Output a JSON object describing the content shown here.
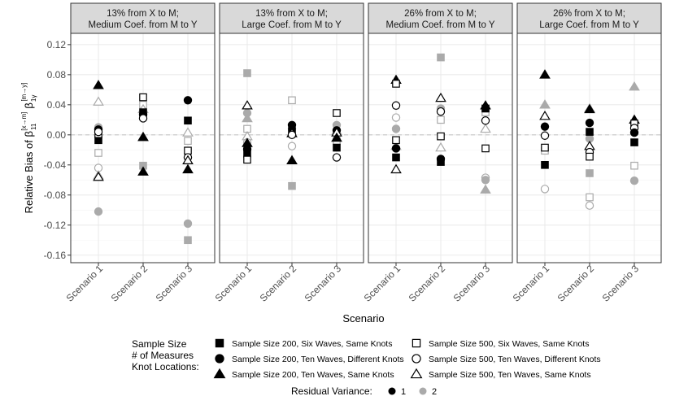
{
  "chart_data": {
    "type": "scatter",
    "ylabel_main": "Relative Bias of β",
    "ylabel_sub": "11",
    "ylabel_sup": "[x→m]",
    "ylabel_main2": "β",
    "ylabel_sub2": "1γ",
    "ylabel_sup2": "[m→y]",
    "xlabel": "Scenario",
    "ylim": [
      -0.17,
      0.135
    ],
    "yticks": [
      0.12,
      0.08,
      0.04,
      0.0,
      -0.04,
      -0.08,
      -0.12,
      -0.16
    ],
    "ytick_labels": [
      "0.12",
      "0.08",
      "0.04",
      "0.00",
      "-0.04",
      "-0.08",
      "-0.12",
      "-0.16"
    ],
    "categories": [
      "Scenario 1",
      "Scenario 2",
      "Scenario 3"
    ],
    "panels": [
      {
        "title_line1": "13% from X to M;",
        "title_line2": "Medium Coef. from M to Y",
        "points": [
          {
            "c": 0,
            "v": 0.066,
            "sh": "triangle",
            "f": true,
            "rv": 1
          },
          {
            "c": 0,
            "v": 0.007,
            "sh": "circle",
            "f": true,
            "rv": 1
          },
          {
            "c": 0,
            "v": -0.007,
            "sh": "square",
            "f": true,
            "rv": 1
          },
          {
            "c": 0,
            "v": 0.001,
            "sh": "square",
            "f": false,
            "rv": 1
          },
          {
            "c": 0,
            "v": 0.004,
            "sh": "circle",
            "f": false,
            "rv": 1
          },
          {
            "c": 0,
            "v": -0.056,
            "sh": "triangle",
            "f": false,
            "rv": 1
          },
          {
            "c": 0,
            "v": 0.044,
            "sh": "triangle",
            "f": false,
            "rv": 2
          },
          {
            "c": 0,
            "v": 0.01,
            "sh": "circle",
            "f": true,
            "rv": 2
          },
          {
            "c": 0,
            "v": -0.024,
            "sh": "square",
            "f": false,
            "rv": 2
          },
          {
            "c": 0,
            "v": -0.044,
            "sh": "circle",
            "f": false,
            "rv": 2
          },
          {
            "c": 0,
            "v": -0.054,
            "sh": "triangle",
            "f": true,
            "rv": 2
          },
          {
            "c": 0,
            "v": -0.102,
            "sh": "circle",
            "f": true,
            "rv": 2
          },
          {
            "c": 1,
            "v": 0.05,
            "sh": "square",
            "f": false,
            "rv": 1
          },
          {
            "c": 1,
            "v": 0.03,
            "sh": "square",
            "f": true,
            "rv": 1
          },
          {
            "c": 1,
            "v": 0.027,
            "sh": "circle",
            "f": true,
            "rv": 1
          },
          {
            "c": 1,
            "v": 0.022,
            "sh": "circle",
            "f": false,
            "rv": 1
          },
          {
            "c": 1,
            "v": -0.003,
            "sh": "triangle",
            "f": true,
            "rv": 1
          },
          {
            "c": 1,
            "v": -0.049,
            "sh": "triangle",
            "f": true,
            "rv": 1
          },
          {
            "c": 1,
            "v": 0.04,
            "sh": "square",
            "f": false,
            "rv": 2
          },
          {
            "c": 1,
            "v": 0.034,
            "sh": "triangle",
            "f": false,
            "rv": 2
          },
          {
            "c": 1,
            "v": -0.003,
            "sh": "triangle",
            "f": false,
            "rv": 2
          },
          {
            "c": 1,
            "v": -0.041,
            "sh": "square",
            "f": true,
            "rv": 2
          },
          {
            "c": 2,
            "v": 0.046,
            "sh": "circle",
            "f": true,
            "rv": 1
          },
          {
            "c": 2,
            "v": 0.019,
            "sh": "square",
            "f": true,
            "rv": 1
          },
          {
            "c": 2,
            "v": -0.021,
            "sh": "square",
            "f": false,
            "rv": 1
          },
          {
            "c": 2,
            "v": -0.03,
            "sh": "circle",
            "f": false,
            "rv": 1
          },
          {
            "c": 2,
            "v": -0.034,
            "sh": "triangle",
            "f": false,
            "rv": 1
          },
          {
            "c": 2,
            "v": -0.046,
            "sh": "triangle",
            "f": true,
            "rv": 1
          },
          {
            "c": 2,
            "v": 0.003,
            "sh": "triangle",
            "f": false,
            "rv": 2
          },
          {
            "c": 2,
            "v": -0.008,
            "sh": "square",
            "f": false,
            "rv": 2
          },
          {
            "c": 2,
            "v": -0.118,
            "sh": "circle",
            "f": true,
            "rv": 2
          },
          {
            "c": 2,
            "v": -0.14,
            "sh": "square",
            "f": true,
            "rv": 2
          }
        ]
      },
      {
        "title_line1": "13% from X to M;",
        "title_line2": "Large Coef. from M to Y",
        "points": [
          {
            "c": 0,
            "v": 0.039,
            "sh": "triangle",
            "f": false,
            "rv": 1
          },
          {
            "c": 0,
            "v": -0.011,
            "sh": "triangle",
            "f": true,
            "rv": 1
          },
          {
            "c": 0,
            "v": -0.019,
            "sh": "circle",
            "f": true,
            "rv": 1
          },
          {
            "c": 0,
            "v": -0.025,
            "sh": "square",
            "f": true,
            "rv": 1
          },
          {
            "c": 0,
            "v": -0.033,
            "sh": "square",
            "f": false,
            "rv": 1
          },
          {
            "c": 0,
            "v": 0.082,
            "sh": "square",
            "f": true,
            "rv": 2
          },
          {
            "c": 0,
            "v": 0.029,
            "sh": "circle",
            "f": true,
            "rv": 2
          },
          {
            "c": 0,
            "v": 0.022,
            "sh": "triangle",
            "f": true,
            "rv": 2
          },
          {
            "c": 0,
            "v": 0.008,
            "sh": "square",
            "f": false,
            "rv": 2
          },
          {
            "c": 0,
            "v": -0.002,
            "sh": "triangle",
            "f": false,
            "rv": 2
          },
          {
            "c": 0,
            "v": -0.01,
            "sh": "circle",
            "f": false,
            "rv": 2
          },
          {
            "c": 1,
            "v": 0.013,
            "sh": "circle",
            "f": true,
            "rv": 1
          },
          {
            "c": 1,
            "v": 0.005,
            "sh": "square",
            "f": true,
            "rv": 1
          },
          {
            "c": 1,
            "v": 0.002,
            "sh": "triangle",
            "f": false,
            "rv": 1
          },
          {
            "c": 1,
            "v": 0.0,
            "sh": "circle",
            "f": false,
            "rv": 1
          },
          {
            "c": 1,
            "v": -0.034,
            "sh": "triangle",
            "f": true,
            "rv": 1
          },
          {
            "c": 1,
            "v": 0.046,
            "sh": "square",
            "f": false,
            "rv": 2
          },
          {
            "c": 1,
            "v": 0.008,
            "sh": "circle",
            "f": true,
            "rv": 2
          },
          {
            "c": 1,
            "v": -0.015,
            "sh": "circle",
            "f": false,
            "rv": 2
          },
          {
            "c": 1,
            "v": -0.034,
            "sh": "triangle",
            "f": false,
            "rv": 2
          },
          {
            "c": 1,
            "v": -0.068,
            "sh": "square",
            "f": true,
            "rv": 2
          },
          {
            "c": 2,
            "v": 0.029,
            "sh": "square",
            "f": false,
            "rv": 1
          },
          {
            "c": 2,
            "v": 0.006,
            "sh": "circle",
            "f": true,
            "rv": 1
          },
          {
            "c": 2,
            "v": 0.003,
            "sh": "triangle",
            "f": false,
            "rv": 1
          },
          {
            "c": 2,
            "v": -0.004,
            "sh": "triangle",
            "f": true,
            "rv": 1
          },
          {
            "c": 2,
            "v": -0.017,
            "sh": "square",
            "f": true,
            "rv": 1
          },
          {
            "c": 2,
            "v": -0.03,
            "sh": "circle",
            "f": false,
            "rv": 1
          },
          {
            "c": 2,
            "v": 0.013,
            "sh": "circle",
            "f": true,
            "rv": 2
          },
          {
            "c": 2,
            "v": 0.005,
            "sh": "triangle",
            "f": false,
            "rv": 2
          },
          {
            "c": 2,
            "v": -0.008,
            "sh": "square",
            "f": false,
            "rv": 2
          }
        ]
      },
      {
        "title_line1": "26% from X to M;",
        "title_line2": "Medium Coef. from M to Y",
        "points": [
          {
            "c": 0,
            "v": 0.073,
            "sh": "triangle",
            "f": true,
            "rv": 1
          },
          {
            "c": 0,
            "v": 0.068,
            "sh": "square",
            "f": false,
            "rv": 1
          },
          {
            "c": 0,
            "v": 0.039,
            "sh": "circle",
            "f": false,
            "rv": 1
          },
          {
            "c": 0,
            "v": -0.007,
            "sh": "square",
            "f": false,
            "rv": 1
          },
          {
            "c": 0,
            "v": -0.018,
            "sh": "circle",
            "f": true,
            "rv": 1
          },
          {
            "c": 0,
            "v": -0.03,
            "sh": "square",
            "f": true,
            "rv": 1
          },
          {
            "c": 0,
            "v": -0.046,
            "sh": "triangle",
            "f": false,
            "rv": 1
          },
          {
            "c": 0,
            "v": 0.023,
            "sh": "circle",
            "f": false,
            "rv": 2
          },
          {
            "c": 0,
            "v": 0.008,
            "sh": "circle",
            "f": true,
            "rv": 2
          },
          {
            "c": 0,
            "v": -0.015,
            "sh": "triangle",
            "f": true,
            "rv": 2
          },
          {
            "c": 1,
            "v": 0.049,
            "sh": "triangle",
            "f": false,
            "rv": 1
          },
          {
            "c": 1,
            "v": 0.031,
            "sh": "circle",
            "f": false,
            "rv": 1
          },
          {
            "c": 1,
            "v": -0.002,
            "sh": "square",
            "f": false,
            "rv": 1
          },
          {
            "c": 1,
            "v": -0.032,
            "sh": "circle",
            "f": true,
            "rv": 1
          },
          {
            "c": 1,
            "v": -0.036,
            "sh": "square",
            "f": true,
            "rv": 1
          },
          {
            "c": 1,
            "v": 0.103,
            "sh": "square",
            "f": true,
            "rv": 2
          },
          {
            "c": 1,
            "v": 0.035,
            "sh": "circle",
            "f": true,
            "rv": 2
          },
          {
            "c": 1,
            "v": 0.02,
            "sh": "square",
            "f": false,
            "rv": 2
          },
          {
            "c": 1,
            "v": -0.017,
            "sh": "triangle",
            "f": false,
            "rv": 2
          },
          {
            "c": 2,
            "v": 0.039,
            "sh": "triangle",
            "f": true,
            "rv": 1
          },
          {
            "c": 2,
            "v": 0.035,
            "sh": "square",
            "f": true,
            "rv": 1
          },
          {
            "c": 2,
            "v": 0.019,
            "sh": "circle",
            "f": false,
            "rv": 1
          },
          {
            "c": 2,
            "v": -0.018,
            "sh": "square",
            "f": false,
            "rv": 1
          },
          {
            "c": 2,
            "v": 0.03,
            "sh": "square",
            "f": false,
            "rv": 2
          },
          {
            "c": 2,
            "v": 0.008,
            "sh": "triangle",
            "f": false,
            "rv": 2
          },
          {
            "c": 2,
            "v": -0.057,
            "sh": "circle",
            "f": false,
            "rv": 2
          },
          {
            "c": 2,
            "v": -0.06,
            "sh": "circle",
            "f": true,
            "rv": 2
          },
          {
            "c": 2,
            "v": -0.073,
            "sh": "triangle",
            "f": true,
            "rv": 2
          }
        ]
      },
      {
        "title_line1": "26% from X to M;",
        "title_line2": "Large Coef. from M to Y",
        "points": [
          {
            "c": 0,
            "v": 0.08,
            "sh": "triangle",
            "f": true,
            "rv": 1
          },
          {
            "c": 0,
            "v": 0.025,
            "sh": "triangle",
            "f": false,
            "rv": 1
          },
          {
            "c": 0,
            "v": 0.011,
            "sh": "circle",
            "f": true,
            "rv": 1
          },
          {
            "c": 0,
            "v": -0.001,
            "sh": "circle",
            "f": false,
            "rv": 1
          },
          {
            "c": 0,
            "v": -0.017,
            "sh": "square",
            "f": false,
            "rv": 1
          },
          {
            "c": 0,
            "v": -0.04,
            "sh": "square",
            "f": true,
            "rv": 1
          },
          {
            "c": 0,
            "v": 0.04,
            "sh": "triangle",
            "f": true,
            "rv": 2
          },
          {
            "c": 0,
            "v": -0.021,
            "sh": "square",
            "f": false,
            "rv": 2
          },
          {
            "c": 0,
            "v": -0.072,
            "sh": "circle",
            "f": false,
            "rv": 2
          },
          {
            "c": 1,
            "v": 0.034,
            "sh": "triangle",
            "f": true,
            "rv": 1
          },
          {
            "c": 1,
            "v": 0.016,
            "sh": "circle",
            "f": true,
            "rv": 1
          },
          {
            "c": 1,
            "v": 0.004,
            "sh": "square",
            "f": true,
            "rv": 1
          },
          {
            "c": 1,
            "v": -0.015,
            "sh": "triangle",
            "f": false,
            "rv": 1
          },
          {
            "c": 1,
            "v": -0.023,
            "sh": "circle",
            "f": false,
            "rv": 1
          },
          {
            "c": 1,
            "v": -0.029,
            "sh": "square",
            "f": false,
            "rv": 1
          },
          {
            "c": 1,
            "v": 0.035,
            "sh": "triangle",
            "f": false,
            "rv": 2
          },
          {
            "c": 1,
            "v": -0.005,
            "sh": "circle",
            "f": true,
            "rv": 2
          },
          {
            "c": 1,
            "v": -0.051,
            "sh": "square",
            "f": true,
            "rv": 2
          },
          {
            "c": 1,
            "v": -0.083,
            "sh": "square",
            "f": false,
            "rv": 2
          },
          {
            "c": 1,
            "v": -0.094,
            "sh": "circle",
            "f": false,
            "rv": 2
          },
          {
            "c": 2,
            "v": 0.02,
            "sh": "triangle",
            "f": true,
            "rv": 1
          },
          {
            "c": 2,
            "v": 0.015,
            "sh": "square",
            "f": false,
            "rv": 1
          },
          {
            "c": 2,
            "v": 0.009,
            "sh": "circle",
            "f": false,
            "rv": 1
          },
          {
            "c": 2,
            "v": 0.003,
            "sh": "circle",
            "f": true,
            "rv": 1
          },
          {
            "c": 2,
            "v": -0.01,
            "sh": "square",
            "f": true,
            "rv": 1
          },
          {
            "c": 2,
            "v": 0.064,
            "sh": "triangle",
            "f": true,
            "rv": 2
          },
          {
            "c": 2,
            "v": -0.041,
            "sh": "square",
            "f": false,
            "rv": 2
          },
          {
            "c": 2,
            "v": -0.061,
            "sh": "circle",
            "f": true,
            "rv": 2
          }
        ]
      }
    ],
    "legend": {
      "shape_title_lines": [
        "Sample Size",
        "# of Measures",
        "Knot Locations:"
      ],
      "items": [
        {
          "label": "Sample Size 200, Six Waves, Same Knots",
          "shape": "square",
          "filled": true
        },
        {
          "label": "Sample Size 500, Six Waves, Same Knots",
          "shape": "square",
          "filled": false
        },
        {
          "label": "Sample Size 200, Ten Waves, Different Knots",
          "shape": "circle",
          "filled": true
        },
        {
          "label": "Sample Size 500, Ten Waves, Different Knots",
          "shape": "circle",
          "filled": false
        },
        {
          "label": "Sample Size 200, Ten Waves, Same Knots",
          "shape": "triangle",
          "filled": true
        },
        {
          "label": "Sample Size 500, Ten Waves, Same Knots",
          "shape": "triangle",
          "filled": false
        }
      ],
      "color_title": "Residual Variance:",
      "color_items": [
        {
          "label": "1",
          "color": "#000000"
        },
        {
          "label": "2",
          "color": "#aaaaaa"
        }
      ]
    },
    "colors": {
      "rv1": "#000000",
      "rv2": "#aaaaaa",
      "strip_fill": "#d9d9d9",
      "grid_major": "#ebebeb",
      "grid_minor": "#f4f4f4",
      "zero_line": "#c8c8c8"
    }
  }
}
